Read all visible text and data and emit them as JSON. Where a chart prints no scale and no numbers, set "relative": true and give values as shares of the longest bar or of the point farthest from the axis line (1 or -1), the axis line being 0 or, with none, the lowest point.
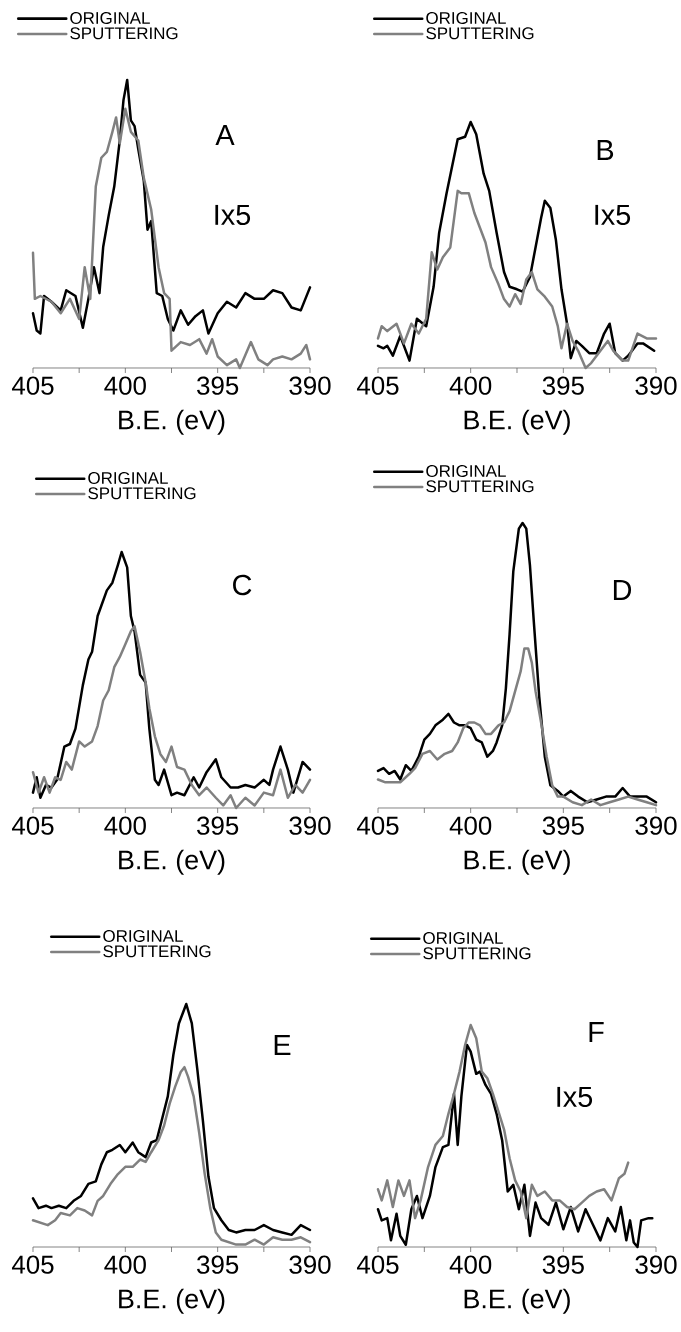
{
  "chart_data": [
    {
      "type": "line",
      "xlabel": "B.E. (eV)",
      "xlim": [
        405,
        390
      ],
      "xticks": [
        405,
        {
          "value": 402.5,
          "label": null
        },
        400,
        {
          "value": 397.5,
          "label": null
        },
        395,
        {
          "value": 392.5,
          "label": null
        },
        390
      ],
      "relative": true,
      "legend": "top left",
      "marker": "none",
      "line_style": "solid",
      "annotations": [
        "A",
        "Ix5"
      ],
      "series": [
        {
          "name": "ORIGINAL",
          "color": "#000000",
          "x": [
            405,
            404.8,
            404.6,
            404.4,
            404,
            403.5,
            403.2,
            402.7,
            402.3,
            402,
            401.7,
            401.4,
            401.2,
            400.9,
            400.6,
            400.3,
            400.1,
            399.9,
            399.7,
            399.5,
            399.3,
            399,
            398.8,
            398.6,
            398.3,
            398,
            397.7,
            397.4,
            397,
            396.6,
            396.2,
            395.8,
            395.5,
            395,
            394.5,
            394,
            393.5,
            393,
            392.5,
            392,
            391.5,
            391,
            390.5,
            390
          ],
          "values": [
            0.19,
            0.13,
            0.12,
            0.25,
            0.23,
            0.2,
            0.27,
            0.25,
            0.14,
            0.24,
            0.35,
            0.26,
            0.42,
            0.53,
            0.63,
            0.79,
            0.93,
            1,
            0.86,
            0.84,
            0.76,
            0.65,
            0.48,
            0.51,
            0.26,
            0.25,
            0.17,
            0.13,
            0.2,
            0.15,
            0.18,
            0.2,
            0.12,
            0.19,
            0.23,
            0.21,
            0.26,
            0.24,
            0.24,
            0.27,
            0.26,
            0.21,
            0.2,
            0.28
          ]
        },
        {
          "name": "SPUTTERING",
          "color": "#808080",
          "x": [
            405,
            404.9,
            404.6,
            404,
            403.5,
            403,
            402.5,
            402.2,
            401.9,
            401.6,
            401.3,
            401,
            400.7,
            400.5,
            400.3,
            400,
            399.7,
            399.3,
            399,
            398.6,
            398.2,
            397.9,
            397.6,
            397.5,
            397,
            396.5,
            396,
            395.6,
            395.3,
            395,
            394.5,
            394,
            393.8,
            393.2,
            392.8,
            392.3,
            392,
            391.5,
            391,
            390.5,
            390.2,
            390
          ],
          "values": [
            0.4,
            0.24,
            0.25,
            0.23,
            0.19,
            0.24,
            0.17,
            0.35,
            0.24,
            0.63,
            0.73,
            0.75,
            0.82,
            0.87,
            0.78,
            0.9,
            0.82,
            0.79,
            0.66,
            0.55,
            0.35,
            0.26,
            0.24,
            0.06,
            0.09,
            0.08,
            0.1,
            0.05,
            0.1,
            0.04,
            0.01,
            0.03,
            0,
            0.09,
            0.03,
            0.01,
            0.03,
            0.04,
            0.03,
            0.05,
            0.08,
            0.03
          ]
        }
      ]
    },
    {
      "type": "line",
      "xlabel": "B.E. (eV)",
      "xlim": [
        405,
        390
      ],
      "xticks": [
        405,
        {
          "value": 402.5,
          "label": null
        },
        400,
        {
          "value": 397.5,
          "label": null
        },
        395,
        {
          "value": 392.5,
          "label": null
        },
        390
      ],
      "relative": true,
      "legend": "top left",
      "marker": "none",
      "line_style": "solid",
      "annotations": [
        "B",
        "Ix5"
      ],
      "series": [
        {
          "name": "ORIGINAL",
          "color": "#000000",
          "x": [
            405,
            404.7,
            404.5,
            404.2,
            403.8,
            403.3,
            402.9,
            402.4,
            402,
            401.7,
            401.3,
            401,
            400.7,
            400.3,
            400,
            399.7,
            399.3,
            399,
            398.6,
            398.2,
            397.9,
            397.5,
            397.2,
            396.8,
            396.5,
            396.2,
            396,
            395.7,
            395.4,
            395.1,
            394.8,
            394.6,
            394.3,
            394,
            393.6,
            393.2,
            392.8,
            392.5,
            392.2,
            391.8,
            391.5,
            391,
            390.7,
            390.1
          ],
          "values": [
            0.09,
            0.08,
            0.09,
            0.05,
            0.13,
            0.03,
            0.2,
            0.17,
            0.33,
            0.55,
            0.71,
            0.82,
            0.93,
            0.94,
            1,
            0.95,
            0.79,
            0.72,
            0.55,
            0.39,
            0.33,
            0.32,
            0.31,
            0.37,
            0.49,
            0.61,
            0.68,
            0.65,
            0.52,
            0.32,
            0.18,
            0.04,
            0.11,
            0.09,
            0.06,
            0.06,
            0.14,
            0.18,
            0.06,
            0.03,
            0.05,
            0.1,
            0.1,
            0.07
          ]
        },
        {
          "name": "SPUTTERING",
          "color": "#808080",
          "x": [
            405,
            404.8,
            404.5,
            404,
            403.6,
            403.2,
            402.8,
            402.4,
            402.1,
            401.8,
            401.5,
            401.1,
            400.7,
            400.5,
            400.1,
            399.8,
            399.5,
            399.2,
            398.9,
            398.5,
            398.2,
            397.9,
            397.6,
            397.3,
            397,
            396.7,
            396.4,
            396,
            395.6,
            395.3,
            395.1,
            394.8,
            394.5,
            394.2,
            393.8,
            393.5,
            393,
            392.6,
            392.3,
            391.8,
            391.5,
            391,
            390.5,
            390
          ],
          "values": [
            0.12,
            0.17,
            0.15,
            0.18,
            0.1,
            0.18,
            0.14,
            0.2,
            0.47,
            0.4,
            0.45,
            0.49,
            0.72,
            0.71,
            0.71,
            0.63,
            0.57,
            0.51,
            0.41,
            0.34,
            0.28,
            0.25,
            0.3,
            0.26,
            0.36,
            0.39,
            0.32,
            0.29,
            0.25,
            0.17,
            0.08,
            0.18,
            0.11,
            0.07,
            0,
            0.02,
            0.07,
            0.11,
            0.07,
            0.03,
            0.03,
            0.14,
            0.12,
            0.12
          ]
        }
      ]
    },
    {
      "type": "line",
      "xlabel": "B.E. (eV)",
      "xlim": [
        405,
        390
      ],
      "xticks": [
        405,
        {
          "value": 402.5,
          "label": null
        },
        400,
        {
          "value": 397.5,
          "label": null
        },
        395,
        {
          "value": 392.5,
          "label": null
        },
        390
      ],
      "relative": true,
      "legend": "top left",
      "marker": "none",
      "line_style": "solid",
      "annotations": [
        "C"
      ],
      "series": [
        {
          "name": "ORIGINAL",
          "color": "#000000",
          "x": [
            405,
            404.8,
            404.6,
            404.3,
            404,
            403.7,
            403.3,
            403,
            402.7,
            402.3,
            402,
            401.8,
            401.5,
            401.3,
            401,
            400.7,
            400.4,
            400.2,
            399.9,
            399.7,
            399.5,
            399.2,
            398.9,
            398.7,
            398.4,
            398.2,
            397.9,
            397.5,
            397.2,
            396.8,
            396.3,
            396,
            395.6,
            395.1,
            394.8,
            394.3,
            393.9,
            393.5,
            393,
            392.5,
            392.2,
            392,
            391.6,
            391.2,
            390.9,
            390.4,
            390
          ],
          "values": [
            0.06,
            0.12,
            0.04,
            0.09,
            0.08,
            0.11,
            0.24,
            0.25,
            0.31,
            0.48,
            0.58,
            0.61,
            0.75,
            0.79,
            0.85,
            0.88,
            0.95,
            1,
            0.94,
            0.75,
            0.69,
            0.52,
            0.49,
            0.31,
            0.11,
            0.09,
            0.15,
            0.05,
            0.06,
            0.05,
            0.12,
            0.08,
            0.14,
            0.19,
            0.12,
            0.08,
            0.08,
            0.09,
            0.08,
            0.11,
            0.09,
            0.15,
            0.24,
            0.15,
            0.06,
            0.18,
            0.15
          ]
        },
        {
          "name": "SPUTTERING",
          "color": "#808080",
          "x": [
            405,
            404.7,
            404.4,
            404.1,
            403.8,
            403.5,
            403.2,
            402.9,
            402.5,
            402.2,
            401.8,
            401.5,
            401.2,
            400.9,
            400.6,
            400.3,
            400,
            399.7,
            399.5,
            399.2,
            398.9,
            398.7,
            398.4,
            398.1,
            397.8,
            397.5,
            397.2,
            396.8,
            396.4,
            396,
            395.6,
            395.1,
            394.7,
            394.3,
            394,
            393.5,
            393,
            392.5,
            392,
            391.6,
            391.2,
            390.8,
            390.4,
            390
          ],
          "values": [
            0.14,
            0.06,
            0.12,
            0.06,
            0.12,
            0.11,
            0.18,
            0.15,
            0.26,
            0.24,
            0.26,
            0.32,
            0.42,
            0.46,
            0.55,
            0.59,
            0.64,
            0.69,
            0.71,
            0.61,
            0.49,
            0.39,
            0.28,
            0.21,
            0.18,
            0.24,
            0.16,
            0.15,
            0.09,
            0.05,
            0.08,
            0.04,
            0.01,
            0.05,
            0,
            0.04,
            0.01,
            0.06,
            0.05,
            0.15,
            0.04,
            0.09,
            0.06,
            0.11
          ]
        }
      ]
    },
    {
      "type": "line",
      "xlabel": "B.E. (eV)",
      "xlim": [
        405,
        390
      ],
      "xticks": [
        405,
        {
          "value": 402.5,
          "label": null
        },
        400,
        {
          "value": 397.5,
          "label": null
        },
        395,
        {
          "value": 392.5,
          "label": null
        },
        390
      ],
      "relative": true,
      "legend": "top left",
      "marker": "none",
      "line_style": "solid",
      "annotations": [
        "D"
      ],
      "series": [
        {
          "name": "ORIGINAL",
          "color": "#000000",
          "x": [
            405,
            404.7,
            404.4,
            404.1,
            403.8,
            403.5,
            403.2,
            402.8,
            402.5,
            402.2,
            401.9,
            401.5,
            401.2,
            400.9,
            400.6,
            400.3,
            400,
            399.7,
            399.4,
            399.1,
            398.8,
            398.6,
            398.3,
            398.1,
            397.9,
            397.7,
            397.4,
            397.2,
            397,
            396.8,
            396.6,
            396.3,
            396,
            395.7,
            395.3,
            395,
            394.6,
            394.2,
            393.7,
            393.2,
            392.7,
            392.2,
            391.8,
            391.4,
            391,
            390.5,
            390
          ],
          "values": [
            0.13,
            0.14,
            0.12,
            0.13,
            0.1,
            0.15,
            0.13,
            0.18,
            0.24,
            0.26,
            0.29,
            0.31,
            0.33,
            0.3,
            0.29,
            0.29,
            0.28,
            0.24,
            0.23,
            0.18,
            0.2,
            0.23,
            0.29,
            0.42,
            0.61,
            0.83,
            0.98,
            1,
            0.98,
            0.85,
            0.66,
            0.39,
            0.18,
            0.08,
            0.06,
            0.04,
            0.06,
            0.04,
            0.02,
            0.03,
            0.04,
            0.04,
            0.07,
            0.04,
            0.04,
            0.04,
            0.02
          ]
        },
        {
          "name": "SPUTTERING",
          "color": "#808080",
          "x": [
            405,
            404.6,
            404.2,
            403.8,
            403.3,
            403,
            402.6,
            402.2,
            401.8,
            401.4,
            401,
            400.7,
            400.4,
            400.1,
            399.8,
            399.5,
            399.2,
            398.9,
            398.5,
            398.2,
            397.9,
            397.6,
            397.3,
            397.1,
            396.9,
            396.7,
            396.5,
            396.2,
            395.9,
            395.6,
            395.3,
            395,
            394.5,
            394,
            393.5,
            393,
            392.5,
            392,
            391.5,
            391,
            390.5,
            390
          ],
          "values": [
            0.1,
            0.09,
            0.09,
            0.09,
            0.12,
            0.14,
            0.19,
            0.2,
            0.17,
            0.19,
            0.2,
            0.23,
            0.28,
            0.3,
            0.3,
            0.29,
            0.26,
            0.26,
            0.29,
            0.3,
            0.34,
            0.41,
            0.48,
            0.56,
            0.56,
            0.51,
            0.41,
            0.3,
            0.18,
            0.08,
            0.04,
            0.04,
            0.02,
            0.01,
            0.03,
            0.01,
            0.02,
            0.03,
            0.04,
            0.03,
            0.02,
            0.01
          ]
        }
      ]
    },
    {
      "type": "line",
      "xlabel": "B.E. (eV)",
      "xlim": [
        405,
        390
      ],
      "xticks": [
        405,
        {
          "value": 402.5,
          "label": null
        },
        400,
        {
          "value": 397.5,
          "label": null
        },
        395,
        {
          "value": 392.5,
          "label": null
        },
        390
      ],
      "relative": true,
      "legend": "top left",
      "marker": "none",
      "line_style": "solid",
      "annotations": [
        "E"
      ],
      "series": [
        {
          "name": "ORIGINAL",
          "color": "#000000",
          "x": [
            405,
            404.7,
            404.3,
            404,
            403.6,
            403.2,
            402.8,
            402.4,
            402,
            401.6,
            401.3,
            401,
            400.7,
            400.3,
            400,
            399.6,
            399.3,
            398.9,
            398.6,
            398.3,
            398,
            397.7,
            397.4,
            397.1,
            396.9,
            396.7,
            396.4,
            396.1,
            395.8,
            395.5,
            395.2,
            394.8,
            394.4,
            394,
            393.5,
            393,
            392.5,
            392,
            391.5,
            391,
            390.5,
            390
          ],
          "values": [
            0.2,
            0.16,
            0.17,
            0.16,
            0.17,
            0.16,
            0.19,
            0.21,
            0.26,
            0.27,
            0.34,
            0.39,
            0.4,
            0.42,
            0.39,
            0.43,
            0.39,
            0.37,
            0.43,
            0.44,
            0.53,
            0.62,
            0.79,
            0.92,
            0.96,
            1,
            0.92,
            0.73,
            0.52,
            0.29,
            0.16,
            0.11,
            0.07,
            0.06,
            0.07,
            0.07,
            0.09,
            0.07,
            0.06,
            0.05,
            0.09,
            0.07
          ]
        },
        {
          "name": "SPUTTERING",
          "color": "#808080",
          "x": [
            405,
            404.6,
            404.2,
            403.8,
            403.5,
            403,
            402.6,
            402.2,
            401.8,
            401.5,
            401.2,
            400.8,
            400.4,
            400,
            399.6,
            399.2,
            398.9,
            398.6,
            398.2,
            397.9,
            397.6,
            397.3,
            397,
            396.8,
            396.6,
            396.3,
            396,
            395.7,
            395.4,
            395.1,
            394.8,
            394.4,
            394,
            393.5,
            393,
            392.5,
            392,
            391.5,
            391,
            390.5,
            390
          ],
          "values": [
            0.11,
            0.1,
            0.09,
            0.11,
            0.14,
            0.13,
            0.16,
            0.15,
            0.13,
            0.19,
            0.21,
            0.26,
            0.3,
            0.33,
            0.33,
            0.36,
            0.35,
            0.39,
            0.44,
            0.5,
            0.59,
            0.66,
            0.72,
            0.74,
            0.7,
            0.62,
            0.47,
            0.3,
            0.16,
            0.06,
            0.03,
            0.02,
            0.01,
            0.01,
            0.03,
            0.01,
            0.04,
            0.03,
            0.03,
            0.04,
            0.02
          ]
        }
      ]
    },
    {
      "type": "line",
      "xlabel": "B.E. (eV)",
      "xlim": [
        405,
        390
      ],
      "xticks": [
        405,
        {
          "value": 402.5,
          "label": null
        },
        400,
        {
          "value": 397.5,
          "label": null
        },
        395,
        {
          "value": 392.5,
          "label": null
        },
        390
      ],
      "relative": true,
      "legend": "top left",
      "marker": "none",
      "line_style": "solid",
      "annotations": [
        "F",
        "Ix5"
      ],
      "series": [
        {
          "name": "ORIGINAL",
          "color": "#000000",
          "x": [
            405,
            404.8,
            404.5,
            404.3,
            404,
            403.8,
            403.5,
            403.2,
            402.9,
            402.6,
            402.2,
            401.9,
            401.5,
            401.2,
            400.9,
            400.7,
            400.5,
            400.2,
            400,
            399.7,
            399.5,
            399.2,
            398.9,
            398.6,
            398.3,
            398,
            397.7,
            397.4,
            397.1,
            396.8,
            396.5,
            396.2,
            395.8,
            395.4,
            395,
            394.6,
            394.2,
            393.8,
            393.4,
            393,
            392.6,
            392.2,
            391.9,
            391.6,
            391.4,
            391.2,
            391,
            390.8,
            390.4,
            390.2
          ],
          "values": [
            0.17,
            0.12,
            0.13,
            0.03,
            0.15,
            0.05,
            0.01,
            0.17,
            0.23,
            0.13,
            0.23,
            0.36,
            0.45,
            0.46,
            0.69,
            0.46,
            0.68,
            0.91,
            0.88,
            0.78,
            0.79,
            0.73,
            0.69,
            0.6,
            0.48,
            0.25,
            0.28,
            0.17,
            0.28,
            0.05,
            0.2,
            0.13,
            0.1,
            0.2,
            0.08,
            0.18,
            0.07,
            0.17,
            0.1,
            0.03,
            0.13,
            0.07,
            0.18,
            0.03,
            0.12,
            0.02,
            0,
            0.12,
            0.13,
            0.13
          ]
        },
        {
          "name": "SPUTTERING",
          "color": "#808080",
          "x": [
            405,
            404.8,
            404.5,
            404.2,
            403.9,
            403.6,
            403.3,
            403,
            402.7,
            402.3,
            401.9,
            401.5,
            401.2,
            400.9,
            400.6,
            400.3,
            400,
            399.7,
            399.4,
            399.1,
            398.8,
            398.5,
            398.2,
            397.9,
            397.6,
            397.3,
            397,
            396.7,
            396.4,
            396,
            395.6,
            395.2,
            394.8,
            394.4,
            394,
            393.6,
            393.2,
            392.8,
            392.4,
            392,
            391.7,
            391.5
          ],
          "values": [
            0.26,
            0.21,
            0.3,
            0.18,
            0.3,
            0.23,
            0.3,
            0.13,
            0.21,
            0.36,
            0.46,
            0.5,
            0.6,
            0.69,
            0.79,
            0.91,
            1,
            0.94,
            0.79,
            0.76,
            0.69,
            0.61,
            0.53,
            0.4,
            0.3,
            0.25,
            0.13,
            0.28,
            0.23,
            0.25,
            0.21,
            0.21,
            0.18,
            0.17,
            0.2,
            0.23,
            0.25,
            0.26,
            0.21,
            0.31,
            0.33,
            0.38
          ]
        }
      ]
    }
  ]
}
